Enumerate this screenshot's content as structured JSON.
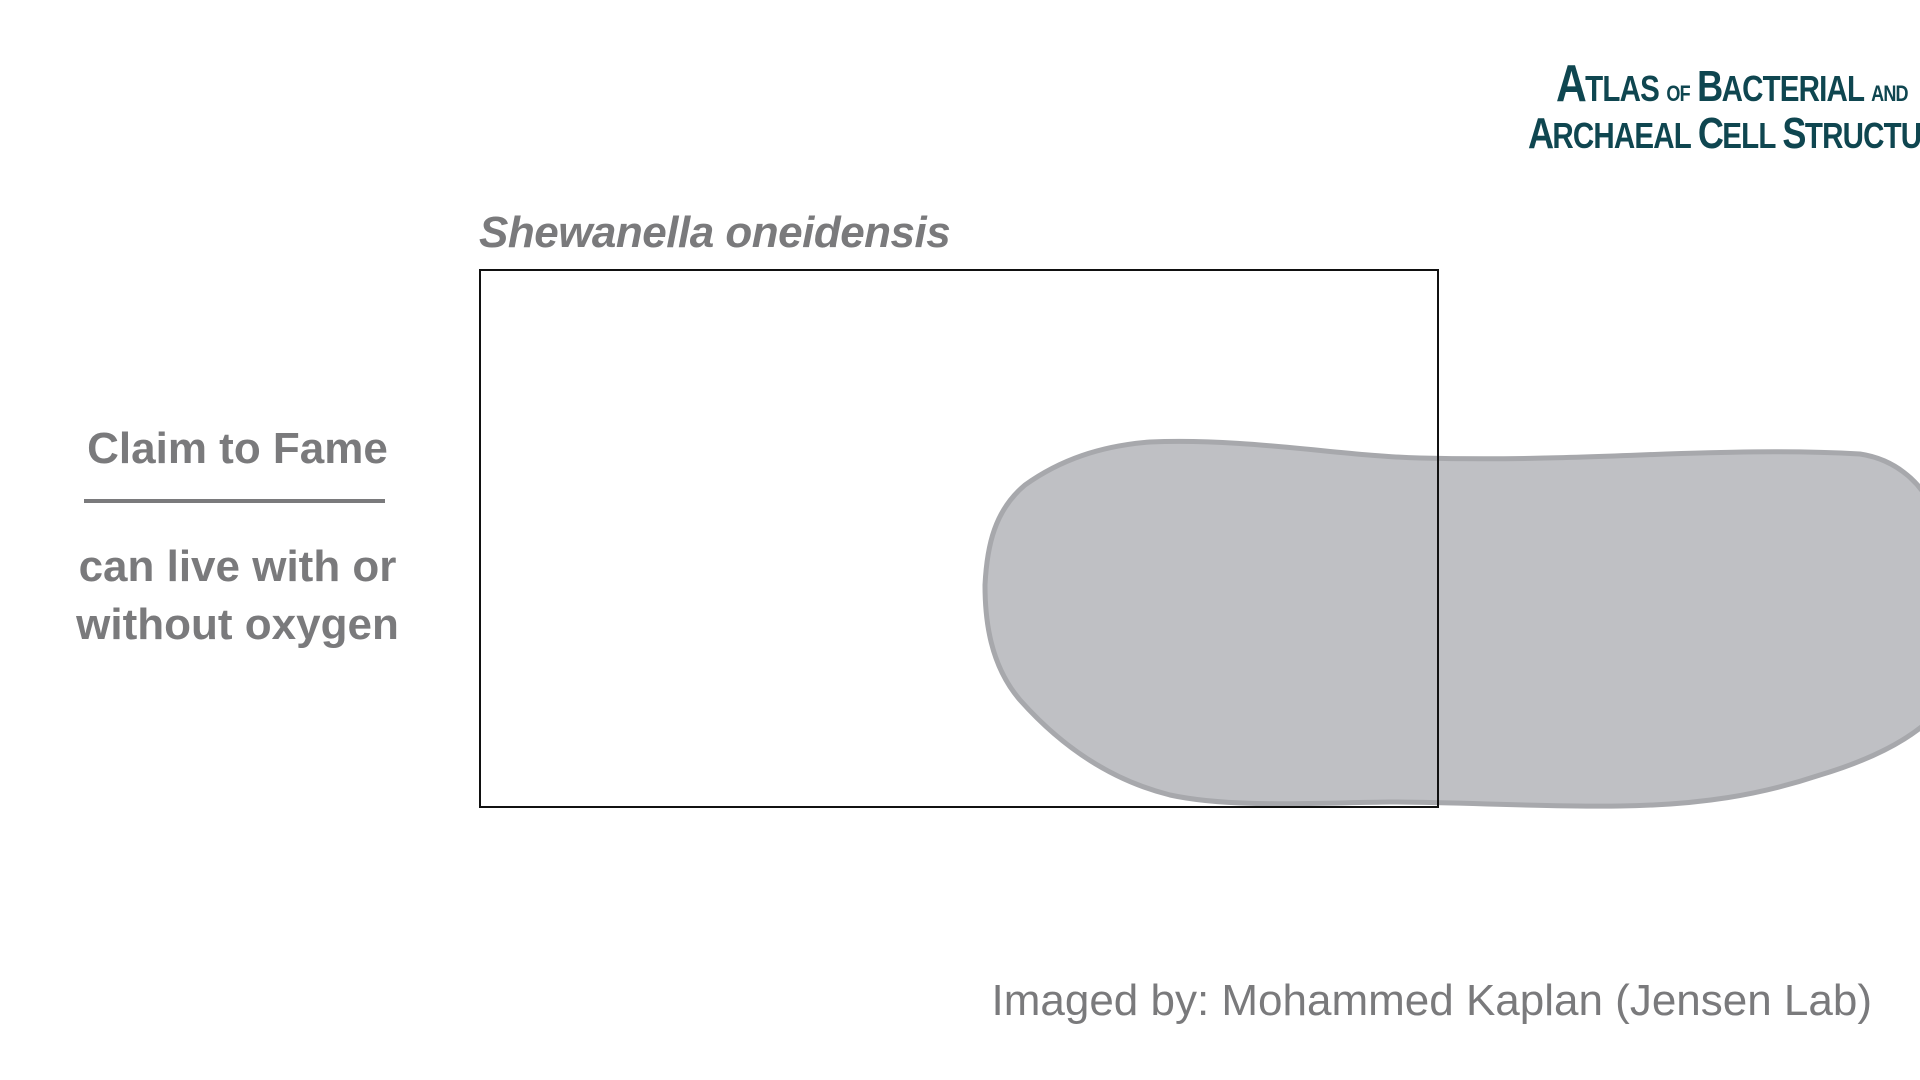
{
  "logo": {
    "line1_initial": "A",
    "line1_rest": "tlas",
    "line1_of": "of",
    "line1_initial2": "B",
    "line1_rest2": "acterial",
    "line1_and": "and",
    "line2_initial": "A",
    "line2_rest": "rchaeal",
    "line2_initial2": "C",
    "line2_rest2": "ell",
    "line2_initial3": "S",
    "line2_rest3": "tructure",
    "color": "#0f4650"
  },
  "species": {
    "name": "Shewanella oneidensis"
  },
  "claim": {
    "heading": "Claim to Fame",
    "text": "can live with or without oxygen"
  },
  "credit": {
    "text": "Imaged by: Mohammed Kaplan (Jensen Lab)"
  },
  "colors": {
    "text_gray": "#7a7a7c",
    "cell_fill": "#bfc0c4",
    "cell_stroke": "#a7a8ac",
    "frame": "#111111"
  }
}
